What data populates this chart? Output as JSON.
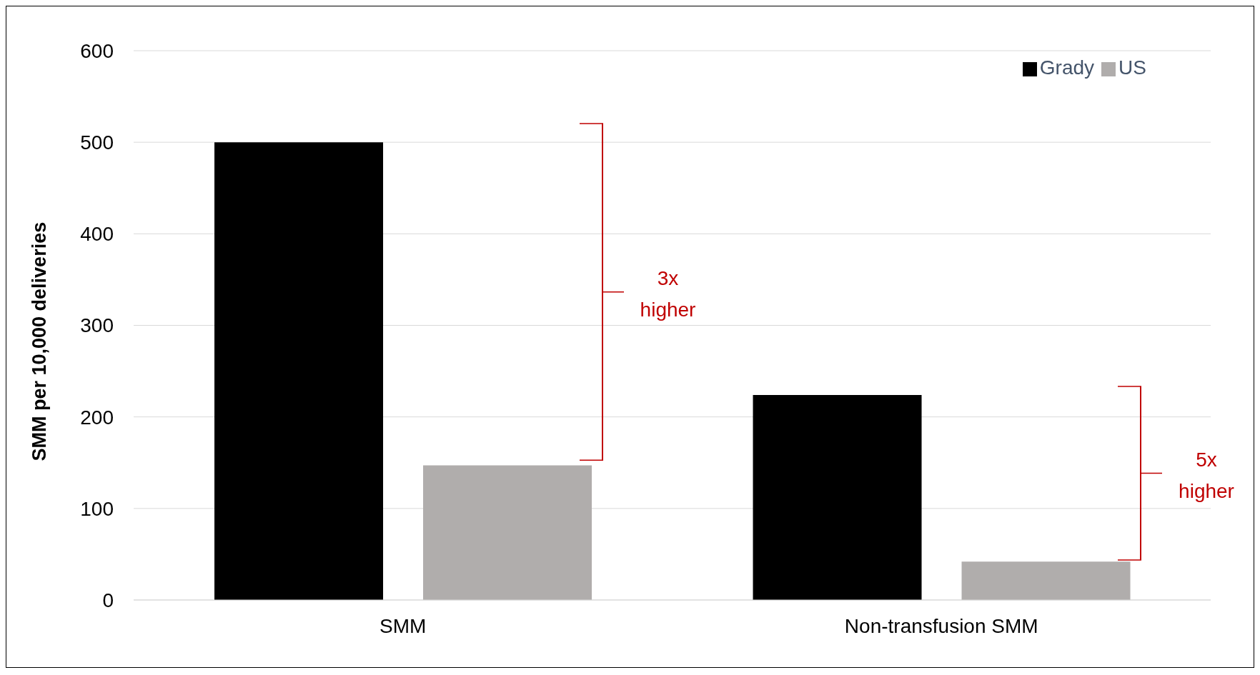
{
  "chart_data": {
    "type": "bar",
    "categories": [
      "SMM",
      "Non-transfusion SMM"
    ],
    "ylabel": "SMM per 10,000 deliveries",
    "series": [
      {
        "name": "Grady",
        "color": "#000000",
        "values": [
          500,
          224
        ]
      },
      {
        "name": "US",
        "color": "#b0adac",
        "values": [
          147,
          42
        ]
      }
    ],
    "ylim": [
      0,
      600
    ],
    "yticks": [
      0,
      100,
      200,
      300,
      400,
      500,
      600
    ],
    "grid": "y",
    "legend": "top right",
    "annotations": [
      "3x higher",
      "5x higher"
    ]
  }
}
